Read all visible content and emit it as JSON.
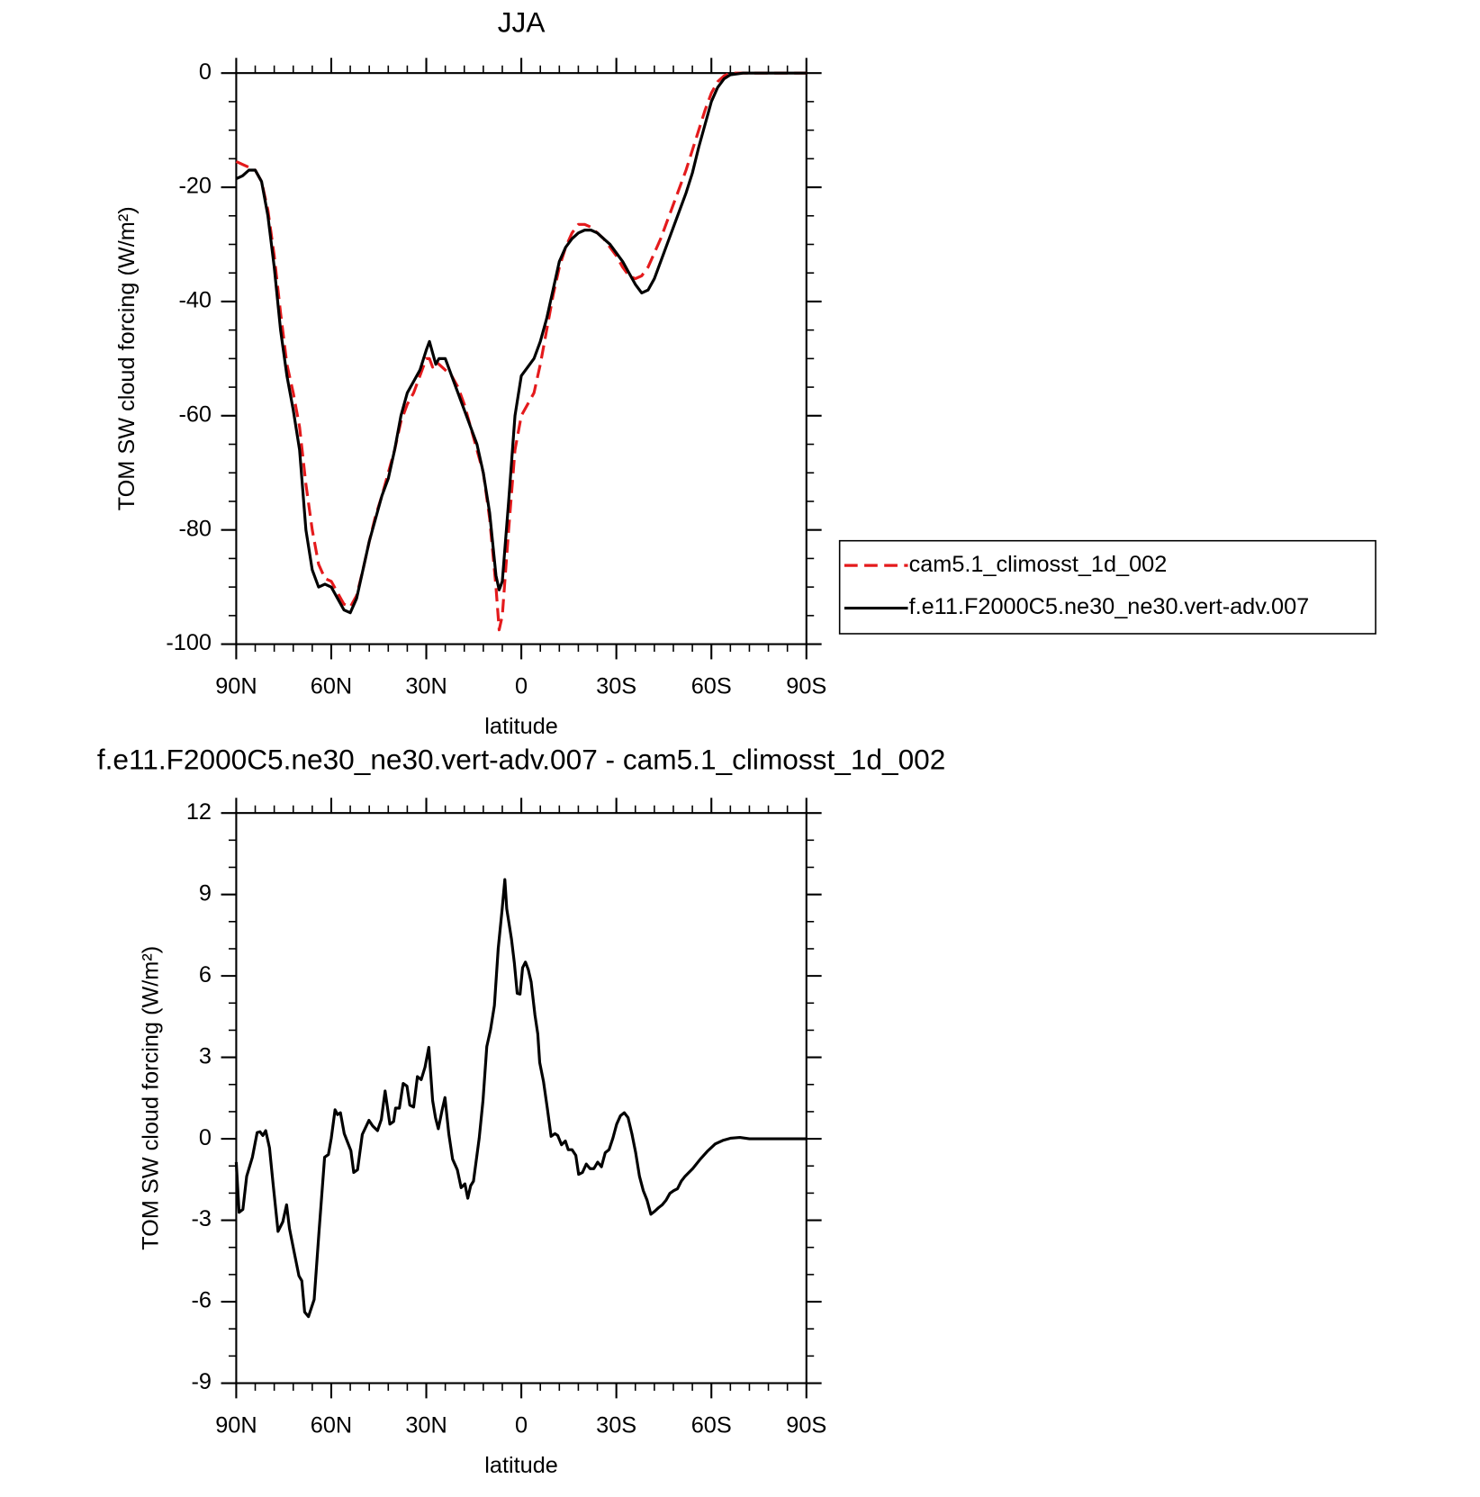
{
  "chart_data": [
    {
      "type": "line",
      "title": "JJA",
      "xlabel": "latitude",
      "ylabel": "TOM SW cloud forcing (W/m²)",
      "x": [
        90,
        88,
        86,
        84,
        82,
        80,
        78,
        76,
        74,
        72,
        70,
        68,
        66,
        64,
        62,
        60,
        58,
        56,
        54,
        52,
        50,
        48,
        46,
        44,
        42,
        40,
        38,
        36,
        34,
        32,
        30,
        29,
        28,
        27,
        26,
        24,
        22,
        20,
        18,
        16,
        14,
        12,
        10,
        8,
        7,
        6,
        4,
        2,
        0,
        -2,
        -4,
        -6,
        -8,
        -10,
        -12,
        -14,
        -16,
        -18,
        -20,
        -22,
        -24,
        -26,
        -28,
        -30,
        -32,
        -34,
        -36,
        -38,
        -40,
        -42,
        -44,
        -46,
        -48,
        -50,
        -52,
        -54,
        -56,
        -58,
        -60,
        -62,
        -64,
        -66,
        -70,
        -80,
        -90
      ],
      "series": [
        {
          "name": "cam5.1_climosst_1d_002",
          "color": "#e41a1c",
          "dashed": true,
          "values": [
            -15.5,
            -16,
            -16.5,
            -17,
            -19,
            -24,
            -32,
            -42,
            -51,
            -56,
            -62,
            -72,
            -80,
            -86,
            -88.5,
            -89,
            -91,
            -93,
            -93.5,
            -91.5,
            -87,
            -82,
            -77.5,
            -74,
            -70,
            -66,
            -61,
            -58,
            -56,
            -53,
            -50,
            -50,
            -51.5,
            -50.5,
            -51,
            -52,
            -53,
            -55,
            -58,
            -62,
            -66,
            -70,
            -78,
            -90,
            -97.5,
            -95,
            -80,
            -66,
            -60,
            -58,
            -56,
            -51,
            -45,
            -39,
            -34,
            -30.5,
            -28,
            -26.5,
            -26.5,
            -27,
            -28,
            -29,
            -30.5,
            -32,
            -34,
            -35.5,
            -36,
            -35.5,
            -34,
            -31.5,
            -29,
            -26,
            -23,
            -20,
            -17,
            -13.5,
            -10,
            -6.5,
            -3.5,
            -1.5,
            -0.5,
            0,
            0,
            0,
            0
          ]
        },
        {
          "name": "f.e11.F2000C5.ne30_ne30.vert-adv.007",
          "color": "#000000",
          "dashed": false,
          "values": [
            -18.5,
            -18,
            -17,
            -17,
            -19,
            -25,
            -34,
            -45,
            -53,
            -59,
            -66,
            -80,
            -87,
            -90,
            -89.5,
            -90,
            -92,
            -94,
            -94.5,
            -92,
            -87,
            -82,
            -78,
            -74,
            -71,
            -66,
            -60,
            -56,
            -54,
            -52,
            -48.5,
            -47,
            -49,
            -51,
            -50,
            -50,
            -53,
            -56,
            -59,
            -62,
            -65,
            -70,
            -77,
            -88,
            -90.5,
            -89,
            -75,
            -60,
            -53,
            -51.5,
            -50,
            -47,
            -43,
            -38,
            -33,
            -30.5,
            -29,
            -28,
            -27.5,
            -27.5,
            -28,
            -29,
            -30,
            -31.5,
            -33,
            -35,
            -37,
            -38.5,
            -38,
            -36,
            -33,
            -30,
            -27,
            -24,
            -21,
            -17.5,
            -13,
            -9,
            -5,
            -2.5,
            -1,
            -0.3,
            0,
            0,
            0
          ]
        }
      ],
      "xlim": [
        90,
        -90
      ],
      "xticks": [
        {
          "value": 90,
          "label": "90N"
        },
        {
          "value": 60,
          "label": "60N"
        },
        {
          "value": 30,
          "label": "30N"
        },
        0,
        {
          "value": -30,
          "label": "30S"
        },
        {
          "value": -60,
          "label": "60S"
        },
        {
          "value": -90,
          "label": "90S"
        }
      ],
      "ylim": [
        -100,
        0
      ],
      "yticks": [
        -100,
        -80,
        -60,
        -40,
        -20,
        0
      ],
      "legend": "outside-right"
    },
    {
      "type": "line",
      "title": "f.e11.F2000C5.ne30_ne30.vert-adv.007 - cam5.1_climosst_1d_002",
      "xlabel": "latitude",
      "ylabel": "TOM SW cloud forcing (W/m²)",
      "x": [
        90,
        89.1,
        87.9,
        86.7,
        84.9,
        83.4,
        82.5,
        81.6,
        80.7,
        79.5,
        78.3,
        76.8,
        75.3,
        74.1,
        73.2,
        71.7,
        70.2,
        69.3,
        68.4,
        67.2,
        65.4,
        63.9,
        62.1,
        60.9,
        60,
        58.8,
        58,
        57.1,
        55.9,
        53.8,
        52.9,
        51.7,
        50.2,
        48.1,
        46.9,
        45.4,
        44.2,
        43,
        41.5,
        40.3,
        39.7,
        38.5,
        37.3,
        36.1,
        35.2,
        34,
        32.8,
        31.6,
        30.4,
        29.2,
        28,
        27.1,
        26.2,
        25,
        24.1,
        22.9,
        21.7,
        20.2,
        19,
        17.8,
        16.9,
        16,
        15.1,
        13.3,
        12.1,
        10.9,
        9.7,
        8.5,
        7.3,
        6.1,
        5.2,
        4.6,
        3.1,
        2.2,
        1.3,
        0.4,
        -0.4,
        -1.3,
        -2.2,
        -3.1,
        -4.3,
        -5.2,
        -5.8,
        -7,
        -8.2,
        -9.4,
        -10.6,
        -11.5,
        -12.7,
        -13.9,
        -14.8,
        -16,
        -17.2,
        -18.1,
        -19.3,
        -20.5,
        -21.7,
        -22.9,
        -24.1,
        -25.3,
        -26.5,
        -27.7,
        -28.9,
        -30.1,
        -31.3,
        -32.5,
        -33.7,
        -34.9,
        -36.1,
        -37.3,
        -38.5,
        -39.7,
        -40.9,
        -42.1,
        -43.3,
        -44.5,
        -45.7,
        -46.9,
        -48.1,
        -49.3,
        -50.5,
        -51.7,
        -54.1,
        -56.5,
        -58.9,
        -61.2,
        -63.6,
        -66,
        -69,
        -72,
        -90
      ],
      "values": [
        -0.86,
        -2.71,
        -2.6,
        -1.38,
        -0.68,
        0.23,
        0.26,
        0.12,
        0.3,
        -0.33,
        -1.73,
        -3.41,
        -3.06,
        -2.43,
        -3.3,
        -4.18,
        -5.05,
        -5.23,
        -6.38,
        -6.55,
        -5.92,
        -3.48,
        -0.68,
        -0.58,
        0.02,
        1.07,
        0.89,
        0.96,
        0.19,
        -0.44,
        -1.24,
        -1.14,
        0.16,
        0.68,
        0.47,
        0.3,
        0.71,
        1.76,
        0.54,
        0.64,
        1.13,
        1.13,
        2.04,
        1.94,
        1.24,
        1.17,
        2.29,
        2.18,
        2.64,
        3.37,
        1.41,
        0.78,
        0.37,
        1.06,
        1.52,
        0.19,
        -0.75,
        -1.14,
        -1.8,
        -1.66,
        -2.19,
        -1.73,
        -1.56,
        0.02,
        1.41,
        3.4,
        4.03,
        4.91,
        7,
        8.4,
        9.55,
        8.47,
        7.35,
        6.48,
        5.36,
        5.33,
        6.3,
        6.51,
        6.23,
        5.78,
        4.56,
        3.86,
        2.81,
        2.11,
        1.13,
        0.09,
        0.19,
        0.12,
        -0.22,
        -0.08,
        -0.4,
        -0.4,
        -0.61,
        -1.31,
        -1.24,
        -0.93,
        -1.1,
        -1.1,
        -0.86,
        -1.03,
        -0.51,
        -0.4,
        0.02,
        0.54,
        0.85,
        0.96,
        0.78,
        0.19,
        -0.51,
        -1.38,
        -1.91,
        -2.26,
        -2.78,
        -2.67,
        -2.54,
        -2.43,
        -2.26,
        -2.01,
        -1.91,
        -1.84,
        -1.56,
        -1.38,
        -1.1,
        -0.75,
        -0.44,
        -0.19,
        -0.06,
        0.02,
        0.05,
        0,
        0
      ],
      "color": "#000000",
      "xlim": [
        90,
        -90
      ],
      "xticks": [
        {
          "value": 90,
          "label": "90N"
        },
        {
          "value": 60,
          "label": "60N"
        },
        {
          "value": 30,
          "label": "30N"
        },
        0,
        {
          "value": -30,
          "label": "30S"
        },
        {
          "value": -60,
          "label": "60S"
        },
        {
          "value": -90,
          "label": "90S"
        }
      ],
      "ylim": [
        -9,
        12
      ],
      "yticks": [
        -9,
        -6,
        -3,
        0,
        3,
        6,
        9,
        12
      ]
    }
  ]
}
